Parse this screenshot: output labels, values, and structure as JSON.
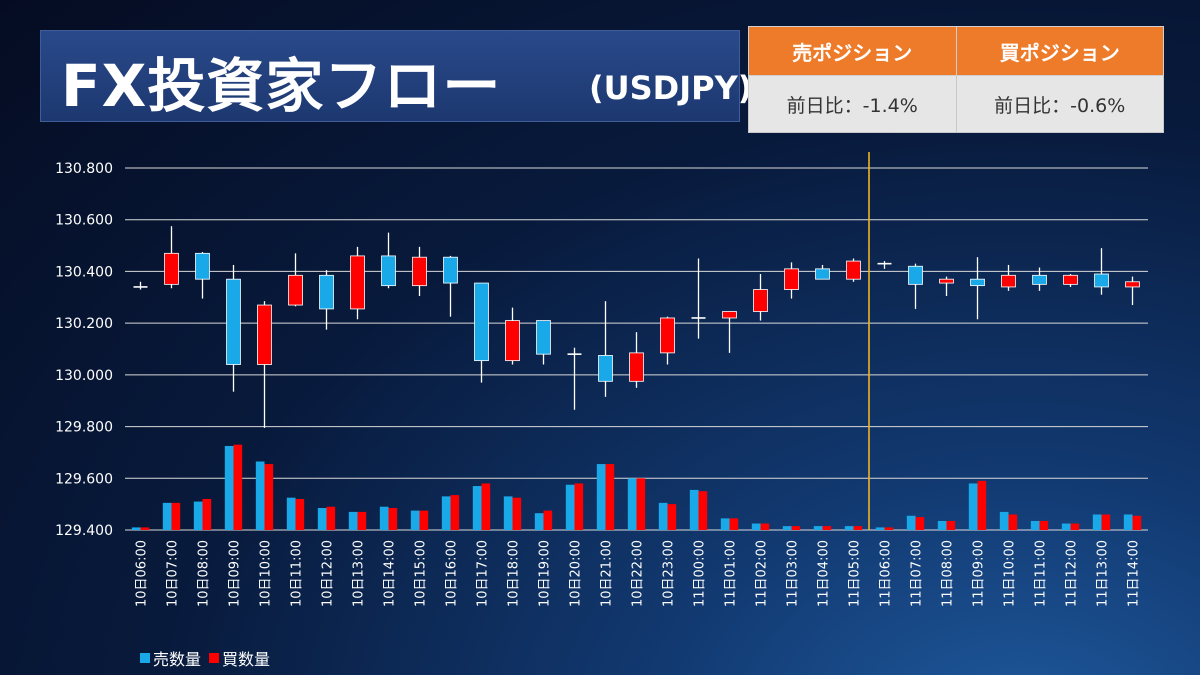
{
  "header": {
    "title": "FX投資家フロー",
    "subtitle": "(USDJPY)"
  },
  "positions": {
    "sell_label": "売ポジション",
    "buy_label": "買ポジション",
    "sell_change": "前日比：-1.4%",
    "buy_change": "前日比：-0.6%"
  },
  "colors": {
    "up": "#ff0000",
    "down": "#19a9e8",
    "doji": "#ffffff",
    "sell_volume": "#19a9e8",
    "buy_volume": "#ff0000",
    "marker_line": "#f2b320",
    "header_accent": "#ee7b2a"
  },
  "chart_data": {
    "type": "candlestick",
    "y_ticks": [
      "130.800",
      "130.600",
      "130.400",
      "130.200",
      "130.000",
      "129.800",
      "129.600",
      "129.400"
    ],
    "ylim": [
      129.4,
      130.8
    ],
    "grid": true,
    "vertical_marker_at": "11日06:00",
    "x": [
      "10日06:00",
      "10日07:00",
      "10日08:00",
      "10日09:00",
      "10日10:00",
      "10日11:00",
      "10日12:00",
      "10日13:00",
      "10日14:00",
      "10日15:00",
      "10日16:00",
      "10日17:00",
      "10日18:00",
      "10日19:00",
      "10日20:00",
      "10日21:00",
      "10日22:00",
      "10日23:00",
      "11日00:00",
      "11日01:00",
      "11日02:00",
      "11日03:00",
      "11日04:00",
      "11日05:00",
      "11日06:00",
      "11日07:00",
      "11日08:00",
      "11日09:00",
      "11日10:00",
      "11日11:00",
      "11日12:00",
      "11日13:00",
      "11日14:00"
    ],
    "ohlc": [
      [
        130.34,
        130.36,
        130.33,
        130.34
      ],
      [
        130.35,
        130.575,
        130.335,
        130.47
      ],
      [
        130.47,
        130.475,
        130.295,
        130.37
      ],
      [
        130.37,
        130.425,
        129.935,
        130.04
      ],
      [
        130.04,
        130.285,
        129.795,
        130.27
      ],
      [
        130.27,
        130.47,
        130.265,
        130.385
      ],
      [
        130.385,
        130.405,
        130.175,
        130.255
      ],
      [
        130.255,
        130.495,
        130.215,
        130.46
      ],
      [
        130.46,
        130.55,
        130.335,
        130.345
      ],
      [
        130.345,
        130.495,
        130.305,
        130.455
      ],
      [
        130.455,
        130.46,
        130.225,
        130.355
      ],
      [
        130.355,
        130.355,
        129.97,
        130.055
      ],
      [
        130.055,
        130.26,
        130.04,
        130.21
      ],
      [
        130.21,
        130.21,
        130.04,
        130.08
      ],
      [
        130.08,
        130.105,
        129.865,
        130.08
      ],
      [
        130.075,
        130.285,
        129.915,
        129.975
      ],
      [
        129.975,
        130.165,
        129.95,
        130.085
      ],
      [
        130.085,
        130.225,
        130.04,
        130.22
      ],
      [
        130.22,
        130.45,
        130.14,
        130.22
      ],
      [
        130.22,
        130.245,
        130.085,
        130.245
      ],
      [
        130.245,
        130.39,
        130.21,
        130.33
      ],
      [
        130.33,
        130.435,
        130.295,
        130.41
      ],
      [
        130.41,
        130.425,
        130.37,
        130.37
      ],
      [
        130.37,
        130.45,
        130.36,
        130.44
      ],
      [
        130.43,
        130.44,
        130.41,
        130.43
      ],
      [
        130.42,
        130.43,
        130.255,
        130.35
      ],
      [
        130.355,
        130.38,
        130.305,
        130.37
      ],
      [
        130.37,
        130.455,
        130.215,
        130.345
      ],
      [
        130.34,
        130.425,
        130.325,
        130.385
      ],
      [
        130.385,
        130.415,
        130.325,
        130.35
      ],
      [
        130.35,
        130.39,
        130.34,
        130.385
      ],
      [
        130.39,
        130.49,
        130.31,
        130.34
      ],
      [
        130.34,
        130.38,
        130.27,
        130.36
      ]
    ],
    "volume_series": [
      {
        "name": "売数量",
        "values": [
          129.41,
          129.505,
          129.51,
          129.725,
          129.665,
          129.525,
          129.485,
          129.47,
          129.49,
          129.475,
          129.53,
          129.57,
          129.53,
          129.465,
          129.575,
          129.655,
          129.6,
          129.505,
          129.555,
          129.445,
          129.425,
          129.415,
          129.415,
          129.415,
          129.41,
          129.455,
          129.435,
          129.58,
          129.47,
          129.435,
          129.425,
          129.46,
          129.46
        ]
      },
      {
        "name": "買数量",
        "values": [
          129.41,
          129.505,
          129.52,
          129.73,
          129.655,
          129.52,
          129.49,
          129.47,
          129.485,
          129.475,
          129.535,
          129.58,
          129.525,
          129.475,
          129.58,
          129.655,
          129.6,
          129.5,
          129.55,
          129.445,
          129.425,
          129.415,
          129.415,
          129.415,
          129.41,
          129.45,
          129.435,
          129.59,
          129.46,
          129.435,
          129.425,
          129.46,
          129.455
        ]
      }
    ],
    "legend_position": "bottom-left"
  }
}
